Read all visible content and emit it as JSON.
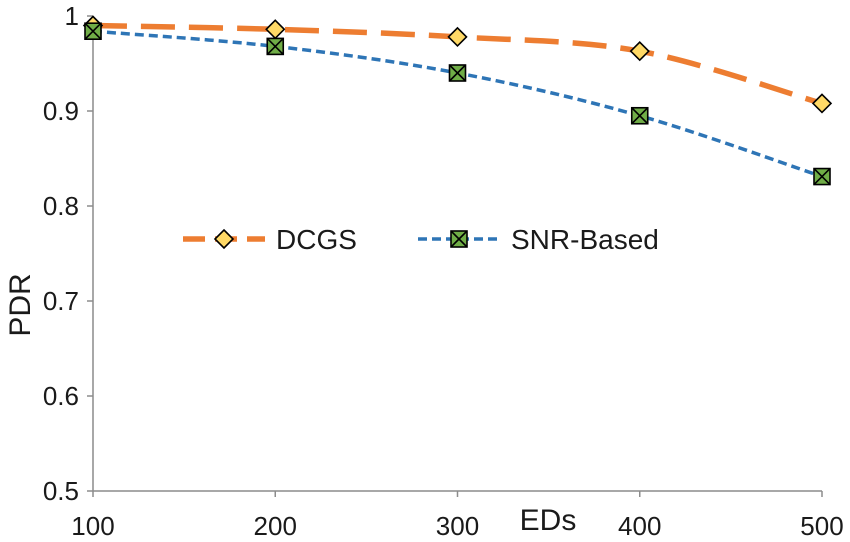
{
  "chart_data": {
    "type": "line",
    "title": "",
    "xlabel": "EDs",
    "ylabel": "PDR",
    "x": [
      100,
      200,
      300,
      400,
      500
    ],
    "xlim": [
      100,
      500
    ],
    "ylim": [
      0.5,
      1.0
    ],
    "yticks": [
      "0.5",
      "0.6",
      "0.7",
      "0.8",
      "0.9",
      "1"
    ],
    "xticks": [
      "100",
      "200",
      "300",
      "400",
      "500"
    ],
    "grid": false,
    "legend_position": "center-left",
    "series": [
      {
        "name": "DCGS",
        "values": [
          0.99,
          0.986,
          0.978,
          0.963,
          0.908
        ],
        "color": "#ED7D31",
        "marker": "diamond",
        "marker_fill": "#FFD966",
        "dash": "long-dash"
      },
      {
        "name": "SNR-Based",
        "values": [
          0.984,
          0.968,
          0.94,
          0.895,
          0.831
        ],
        "color": "#2E75B6",
        "marker": "square-x",
        "marker_fill": "#70AD47",
        "dash": "short-dash"
      }
    ]
  }
}
